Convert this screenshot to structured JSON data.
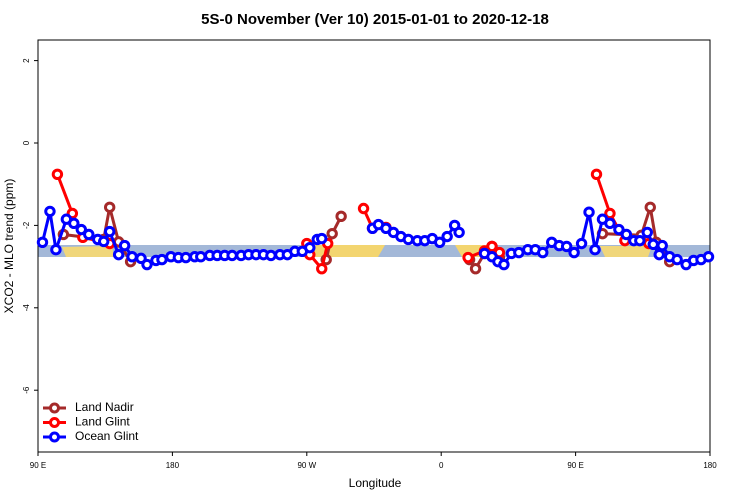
{
  "chart_data": {
    "type": "line",
    "title": "5S-0 November (Ver 10)   2015-01-01 to 2020-12-18",
    "xlabel": "Longitude",
    "ylabel": "XCO2 - MLO trend (ppm)",
    "xlim": [
      90,
      540
    ],
    "ylim": [
      -7.5,
      2.5
    ],
    "xticks": [
      {
        "value": 90,
        "label": "90 E"
      },
      {
        "value": 180,
        "label": "180"
      },
      {
        "value": 270,
        "label": "90 W"
      },
      {
        "value": 360,
        "label": "0"
      },
      {
        "value": 450,
        "label": "90 E"
      },
      {
        "value": 540,
        "label": "180"
      }
    ],
    "yticks": [
      -6,
      -4,
      -2,
      0,
      2
    ],
    "legend": "bottom-left",
    "series": [
      {
        "name": "Land Nadir",
        "color": "#a52a2a",
        "x": [
          107,
          134,
          138,
          144,
          152,
          200,
          283,
          287,
          293,
          340,
          379,
          383,
          389,
          394,
          399,
          450,
          468,
          494,
          500,
          504,
          513
        ],
        "values": [
          -2.22,
          -2.34,
          -1.56,
          -2.4,
          -2.88,
          null,
          -2.83,
          -2.2,
          -1.78,
          null,
          -2.83,
          -3.05,
          -2.68,
          -2.51,
          -2.78,
          null,
          -2.2,
          -2.24,
          -1.56,
          -2.41,
          -2.88
        ]
      },
      {
        "name": "Land Glint",
        "color": "#ff0000",
        "x": [
          103,
          113,
          120,
          138,
          200,
          270,
          272,
          280,
          284,
          290,
          308,
          314,
          323,
          350,
          378,
          389,
          394,
          399,
          450,
          464,
          473,
          483,
          499
        ],
        "values": [
          -0.76,
          -1.71,
          -2.29,
          -2.44,
          null,
          -2.44,
          -2.71,
          -3.05,
          -2.44,
          null,
          -1.59,
          -2.07,
          -2.05,
          null,
          -2.78,
          -2.62,
          -2.51,
          -2.66,
          null,
          -0.76,
          -1.71,
          -2.37,
          -2.44
        ]
      },
      {
        "name": "Ocean Glint",
        "color": "#0000ff",
        "x": [
          93,
          98,
          102,
          109,
          114,
          119,
          124,
          130,
          134,
          138,
          144,
          148,
          153,
          159,
          163,
          169,
          173,
          179,
          184,
          189,
          195,
          199,
          205,
          210,
          215,
          220,
          226,
          231,
          236,
          241,
          246,
          252,
          257,
          262,
          267,
          272,
          277,
          280,
          297,
          314,
          318,
          323,
          328,
          333,
          338,
          344,
          349,
          354,
          359,
          364,
          369,
          372,
          380,
          389,
          394,
          398,
          402,
          407,
          412,
          418,
          423,
          428,
          434,
          439,
          444,
          449,
          454,
          459,
          463,
          468,
          473,
          479,
          484,
          489,
          493,
          498,
          502,
          506,
          508,
          513,
          518,
          524,
          529,
          534,
          539
        ],
        "values": [
          -2.41,
          -1.66,
          -2.59,
          -1.85,
          -1.95,
          -2.1,
          -2.22,
          -2.34,
          -2.39,
          -2.15,
          -2.71,
          -2.49,
          -2.76,
          -2.8,
          -2.95,
          -2.85,
          -2.83,
          -2.76,
          -2.78,
          -2.78,
          -2.76,
          -2.76,
          -2.73,
          -2.73,
          -2.73,
          -2.73,
          -2.73,
          -2.71,
          -2.71,
          -2.71,
          -2.73,
          -2.71,
          -2.71,
          -2.63,
          -2.63,
          -2.54,
          -2.34,
          -2.32,
          null,
          -2.07,
          -1.98,
          -2.07,
          -2.17,
          -2.27,
          -2.34,
          -2.37,
          -2.37,
          -2.32,
          -2.41,
          -2.27,
          -2.0,
          -2.17,
          null,
          -2.68,
          -2.76,
          -2.88,
          -2.95,
          -2.68,
          -2.66,
          -2.59,
          -2.59,
          -2.66,
          -2.41,
          -2.49,
          -2.51,
          -2.66,
          -2.44,
          -1.68,
          -2.59,
          -1.85,
          -1.95,
          -2.1,
          -2.22,
          -2.37,
          -2.37,
          -2.17,
          -2.46,
          -2.71,
          -2.49,
          -2.76,
          -2.83,
          -2.95,
          -2.85,
          -2.83,
          -2.76
        ]
      }
    ]
  }
}
